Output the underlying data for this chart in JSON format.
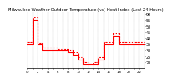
{
  "title": "Milwaukee Weather Outdoor Temperature (vs) Heat Index (Last 24 Hours)",
  "bg_color": "#ffffff",
  "plot_bg": "#ffffff",
  "line_color": "#ff0000",
  "grid_color": "#888888",
  "hours": [
    0,
    1,
    2,
    3,
    4,
    5,
    6,
    7,
    8,
    9,
    10,
    11,
    12,
    13,
    14,
    15,
    16,
    17,
    18,
    19,
    20,
    21,
    22,
    23
  ],
  "temp": [
    35,
    55,
    35,
    30,
    30,
    30,
    30,
    30,
    28,
    26,
    22,
    18,
    18,
    18,
    22,
    35,
    35,
    42,
    35,
    35,
    35,
    35,
    35,
    35
  ],
  "heat_index": [
    37,
    57,
    36,
    32,
    32,
    32,
    31,
    31,
    30,
    28,
    24,
    20,
    19,
    20,
    24,
    37,
    37,
    44,
    37,
    37,
    37,
    37,
    37,
    36
  ],
  "ylim_min": 15,
  "ylim_max": 62,
  "yticks": [
    20,
    25,
    30,
    35,
    40,
    45,
    50,
    55,
    60
  ],
  "ylabel_fontsize": 3.5,
  "title_fontsize": 3.8,
  "lw_solid": 0.8,
  "lw_dash": 0.8
}
